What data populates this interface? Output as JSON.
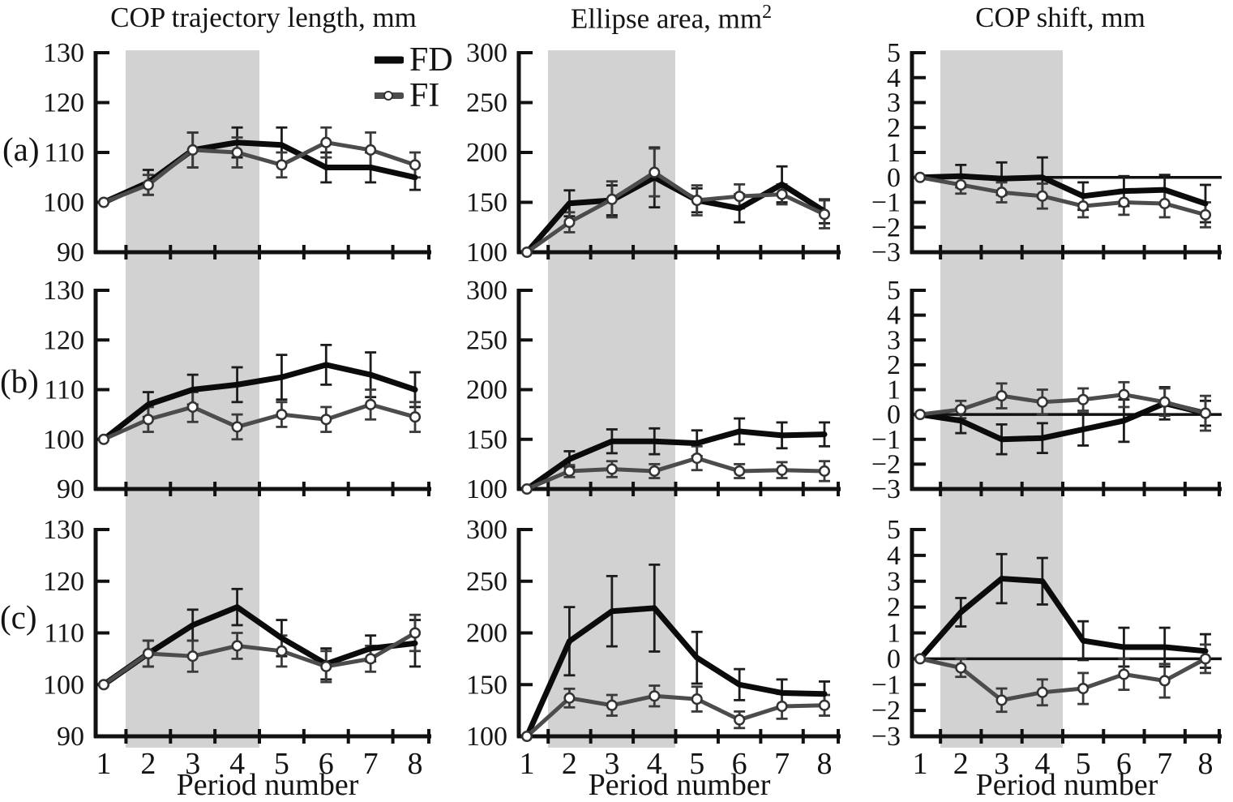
{
  "figure": {
    "background": "#ffffff",
    "band_color": "#d2d2d2",
    "fd_color": "#0b0b0b",
    "fi_color": "#4c4c4c"
  },
  "columns": [
    {
      "title": "COP trajectory length, mm",
      "title_sup": ""
    },
    {
      "title": "Ellipse area, mm",
      "title_sup": "2"
    },
    {
      "title": "COP shift, mm",
      "title_sup": ""
    }
  ],
  "rows": [
    {
      "label": "(a)"
    },
    {
      "label": "(b)"
    },
    {
      "label": "(c)"
    }
  ],
  "legend": {
    "items": [
      {
        "label": "FD",
        "style": "thick-solid-black-line"
      },
      {
        "label": "FI",
        "style": "gray-line-open-circle-marker"
      }
    ]
  },
  "x_axis_title": "Period number",
  "shaded_band": {
    "x_start": 1.5,
    "x_end": 4.5
  },
  "chart_data": [
    {
      "id": "a-cop-trajectory-length",
      "type": "line",
      "row": "(a)",
      "measure": "COP trajectory length, mm",
      "x": [
        1,
        2,
        3,
        4,
        5,
        6,
        7,
        8
      ],
      "ylim": [
        90,
        130
      ],
      "yticks": [
        90,
        100,
        110,
        120,
        130
      ],
      "band": [
        1.5,
        4.5
      ],
      "zero_line": false,
      "show_x_tick_labels": false,
      "series": [
        {
          "name": "FD",
          "values": [
            100,
            104,
            110.5,
            112,
            111.5,
            107,
            107,
            105
          ],
          "errors": [
            0,
            2.5,
            3.5,
            3,
            3.5,
            3,
            3,
            2.5
          ]
        },
        {
          "name": "FI",
          "values": [
            100,
            103.5,
            110.5,
            110,
            107.5,
            112,
            110.5,
            107.5
          ],
          "errors": [
            0,
            2,
            3.5,
            3,
            2.5,
            3,
            3.5,
            2.5
          ]
        }
      ]
    },
    {
      "id": "a-ellipse-area",
      "type": "line",
      "row": "(a)",
      "measure": "Ellipse area, mm2",
      "x": [
        1,
        2,
        3,
        4,
        5,
        6,
        7,
        8
      ],
      "ylim": [
        100,
        300
      ],
      "yticks": [
        100,
        150,
        200,
        250,
        300
      ],
      "band": [
        1.5,
        4.5
      ],
      "zero_line": false,
      "show_x_tick_labels": false,
      "series": [
        {
          "name": "FD",
          "values": [
            100,
            149,
            152,
            175,
            152,
            144,
            168,
            141
          ],
          "errors": [
            0,
            13,
            15,
            30,
            12,
            14,
            18,
            12
          ]
        },
        {
          "name": "FI",
          "values": [
            100,
            130,
            153,
            180,
            152,
            156,
            158,
            138
          ],
          "errors": [
            0,
            10,
            18,
            24,
            15,
            12,
            10,
            14
          ]
        }
      ]
    },
    {
      "id": "a-cop-shift",
      "type": "line",
      "row": "(a)",
      "measure": "COP shift, mm",
      "x": [
        1,
        2,
        3,
        4,
        5,
        6,
        7,
        8
      ],
      "ylim": [
        -3,
        5
      ],
      "yticks": [
        -3,
        -2,
        -1,
        0,
        1,
        2,
        3,
        4,
        5
      ],
      "band": [
        1.5,
        4.5
      ],
      "zero_line": true,
      "show_x_tick_labels": false,
      "series": [
        {
          "name": "FD",
          "values": [
            0,
            0.05,
            -0.05,
            0,
            -0.75,
            -0.55,
            -0.5,
            -1.05
          ],
          "errors": [
            0,
            0.45,
            0.65,
            0.8,
            0.55,
            0.6,
            0.6,
            0.75
          ]
        },
        {
          "name": "FI",
          "values": [
            0,
            -0.3,
            -0.6,
            -0.75,
            -1.15,
            -1.0,
            -1.05,
            -1.5
          ],
          "errors": [
            0,
            0.35,
            0.4,
            0.5,
            0.45,
            0.5,
            0.55,
            0.5
          ]
        }
      ]
    },
    {
      "id": "b-cop-trajectory-length",
      "type": "line",
      "row": "(b)",
      "measure": "COP trajectory length, mm",
      "x": [
        1,
        2,
        3,
        4,
        5,
        6,
        7,
        8
      ],
      "ylim": [
        90,
        130
      ],
      "yticks": [
        90,
        100,
        110,
        120,
        130
      ],
      "band": [
        1.5,
        4.5
      ],
      "zero_line": false,
      "show_x_tick_labels": false,
      "series": [
        {
          "name": "FD",
          "values": [
            100,
            107,
            110,
            111,
            112.5,
            115,
            113,
            110
          ],
          "errors": [
            0,
            2.5,
            3,
            3.5,
            4.5,
            4,
            4.5,
            3.5
          ]
        },
        {
          "name": "FI",
          "values": [
            100,
            104,
            106.5,
            102.5,
            105,
            104,
            107,
            104.5
          ],
          "errors": [
            0,
            2.5,
            3,
            2.5,
            2.5,
            2.5,
            3,
            3
          ]
        }
      ]
    },
    {
      "id": "b-ellipse-area",
      "type": "line",
      "row": "(b)",
      "measure": "Ellipse area, mm2",
      "x": [
        1,
        2,
        3,
        4,
        5,
        6,
        7,
        8
      ],
      "ylim": [
        100,
        300
      ],
      "yticks": [
        100,
        150,
        200,
        250,
        300
      ],
      "band": [
        1.5,
        4.5
      ],
      "zero_line": false,
      "show_x_tick_labels": false,
      "series": [
        {
          "name": "FD",
          "values": [
            100,
            130,
            148,
            148,
            146,
            158,
            154,
            155
          ],
          "errors": [
            0,
            8,
            12,
            13,
            13,
            13,
            13,
            12
          ]
        },
        {
          "name": "FI",
          "values": [
            100,
            118,
            120,
            118,
            131,
            118,
            119,
            118
          ],
          "errors": [
            0,
            6,
            8,
            7,
            12,
            7,
            8,
            10
          ]
        }
      ]
    },
    {
      "id": "b-cop-shift",
      "type": "line",
      "row": "(b)",
      "measure": "COP shift, mm",
      "x": [
        1,
        2,
        3,
        4,
        5,
        6,
        7,
        8
      ],
      "ylim": [
        -3,
        5
      ],
      "yticks": [
        -3,
        -2,
        -1,
        0,
        1,
        2,
        3,
        4,
        5
      ],
      "band": [
        1.5,
        4.5
      ],
      "zero_line": true,
      "show_x_tick_labels": false,
      "series": [
        {
          "name": "FD",
          "values": [
            0,
            -0.25,
            -1.0,
            -0.95,
            -0.6,
            -0.25,
            0.45,
            0.05
          ],
          "errors": [
            0,
            0.5,
            0.6,
            0.6,
            0.65,
            0.85,
            0.65,
            0.5
          ]
        },
        {
          "name": "FI",
          "values": [
            0,
            0.2,
            0.75,
            0.5,
            0.6,
            0.8,
            0.5,
            0.05
          ],
          "errors": [
            0,
            0.35,
            0.5,
            0.5,
            0.45,
            0.5,
            0.55,
            0.7
          ]
        }
      ]
    },
    {
      "id": "c-cop-trajectory-length",
      "type": "line",
      "row": "(c)",
      "measure": "COP trajectory length, mm",
      "x": [
        1,
        2,
        3,
        4,
        5,
        6,
        7,
        8
      ],
      "ylim": [
        90,
        130
      ],
      "yticks": [
        90,
        100,
        110,
        120,
        130
      ],
      "band": [
        1.5,
        4.5
      ],
      "zero_line": false,
      "show_x_tick_labels": true,
      "series": [
        {
          "name": "FD",
          "values": [
            100,
            106,
            111.5,
            115,
            109,
            104,
            107,
            108
          ],
          "errors": [
            0,
            2.5,
            3,
            3.5,
            3.5,
            3,
            2.5,
            4.5
          ]
        },
        {
          "name": "FI",
          "values": [
            100,
            106,
            105.5,
            107.5,
            106.5,
            103.5,
            105,
            110
          ],
          "errors": [
            0,
            2.5,
            3,
            2.5,
            3,
            3,
            2.5,
            3.5
          ]
        }
      ]
    },
    {
      "id": "c-ellipse-area",
      "type": "line",
      "row": "(c)",
      "measure": "Ellipse area, mm2",
      "x": [
        1,
        2,
        3,
        4,
        5,
        6,
        7,
        8
      ],
      "ylim": [
        100,
        300
      ],
      "yticks": [
        100,
        150,
        200,
        250,
        300
      ],
      "band": [
        1.5,
        4.5
      ],
      "zero_line": false,
      "show_x_tick_labels": true,
      "series": [
        {
          "name": "FD",
          "values": [
            100,
            192,
            221,
            224,
            176,
            150,
            142,
            141
          ],
          "errors": [
            0,
            33,
            34,
            42,
            25,
            15,
            13,
            12
          ]
        },
        {
          "name": "FI",
          "values": [
            100,
            137,
            130,
            139,
            136,
            116,
            129,
            130
          ],
          "errors": [
            0,
            9,
            10,
            10,
            12,
            8,
            12,
            10
          ]
        }
      ]
    },
    {
      "id": "c-cop-shift",
      "type": "line",
      "row": "(c)",
      "measure": "COP shift, mm",
      "x": [
        1,
        2,
        3,
        4,
        5,
        6,
        7,
        8
      ],
      "ylim": [
        -3,
        5
      ],
      "yticks": [
        -3,
        -2,
        -1,
        0,
        1,
        2,
        3,
        4,
        5
      ],
      "band": [
        1.5,
        4.5
      ],
      "zero_line": true,
      "show_x_tick_labels": true,
      "series": [
        {
          "name": "FD",
          "values": [
            0,
            1.8,
            3.1,
            3.0,
            0.7,
            0.45,
            0.45,
            0.3
          ],
          "errors": [
            0,
            0.55,
            0.95,
            0.9,
            0.75,
            0.75,
            0.75,
            0.65
          ]
        },
        {
          "name": "FI",
          "values": [
            0,
            -0.35,
            -1.6,
            -1.3,
            -1.15,
            -0.6,
            -0.85,
            0.0
          ],
          "errors": [
            0,
            0.35,
            0.45,
            0.5,
            0.6,
            0.6,
            0.65,
            0.55
          ]
        }
      ]
    }
  ]
}
